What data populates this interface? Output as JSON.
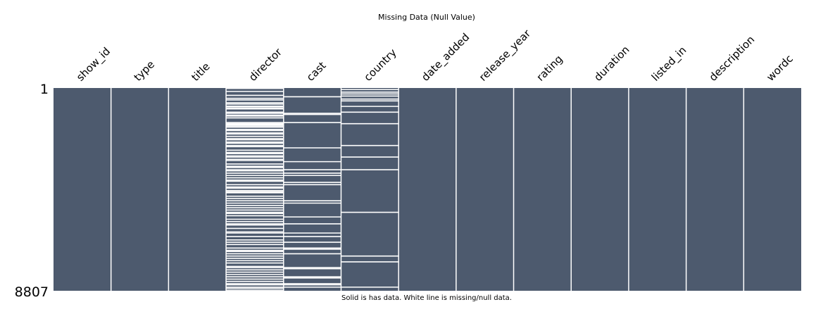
{
  "chart_data": {
    "type": "heatmap",
    "title": "Missing Data (Null Value)",
    "caption": "Solid is has data. White line is missing/null data.",
    "columns": [
      "show_id",
      "type",
      "title",
      "director",
      "cast",
      "country",
      "date_added",
      "release_year",
      "rating",
      "duration",
      "listed_in",
      "description",
      "wordc"
    ],
    "row_range": [
      1,
      8807
    ],
    "row_tick_labels": [
      "1",
      "8807"
    ],
    "fill_color": "#4d5a6e",
    "missing_color": "#ffffff",
    "missing_rows": {
      "director": [
        20,
        150,
        320,
        450,
        520,
        640,
        700,
        790,
        820,
        880,
        910,
        1050,
        1100,
        1180,
        1220,
        1300,
        1500,
        1550,
        1600,
        1650,
        1700,
        1800,
        1850,
        1950,
        2000,
        2100,
        2200,
        2250,
        2350,
        2400,
        2500,
        2550,
        2700,
        2800,
        2850,
        2950,
        3000,
        3100,
        3150,
        3300,
        3400,
        3450,
        3550,
        3600,
        3700,
        3800,
        3900,
        4000,
        4050,
        4200,
        4300,
        4350,
        4450,
        4500,
        4550,
        4700,
        4800,
        4900,
        5000,
        5100,
        5200,
        5300,
        5400,
        5450,
        5550,
        5700,
        5800,
        5900,
        5950,
        6100,
        6250,
        6300,
        6450,
        6600,
        6700,
        6800,
        6950,
        7050,
        7100,
        7200,
        7300,
        7400,
        7500,
        7600,
        7750,
        7800,
        7900,
        8000,
        8100,
        8200,
        8300,
        8400,
        8500,
        8550,
        8650,
        8700,
        8780
      ],
      "cast": [
        380,
        1100,
        1150,
        1500,
        2600,
        3200,
        3550,
        3700,
        3800,
        4100,
        4200,
        4900,
        5000,
        5600,
        5900,
        6300,
        6450,
        6700,
        6950,
        7000,
        7200,
        7800,
        7850,
        8200,
        8250,
        8500,
        8550,
        8650
      ],
      "country": [
        70,
        180,
        260,
        350,
        480,
        560,
        800,
        1050,
        1550,
        2500,
        3000,
        3550,
        5400,
        7300,
        7550,
        8650
      ]
    }
  }
}
